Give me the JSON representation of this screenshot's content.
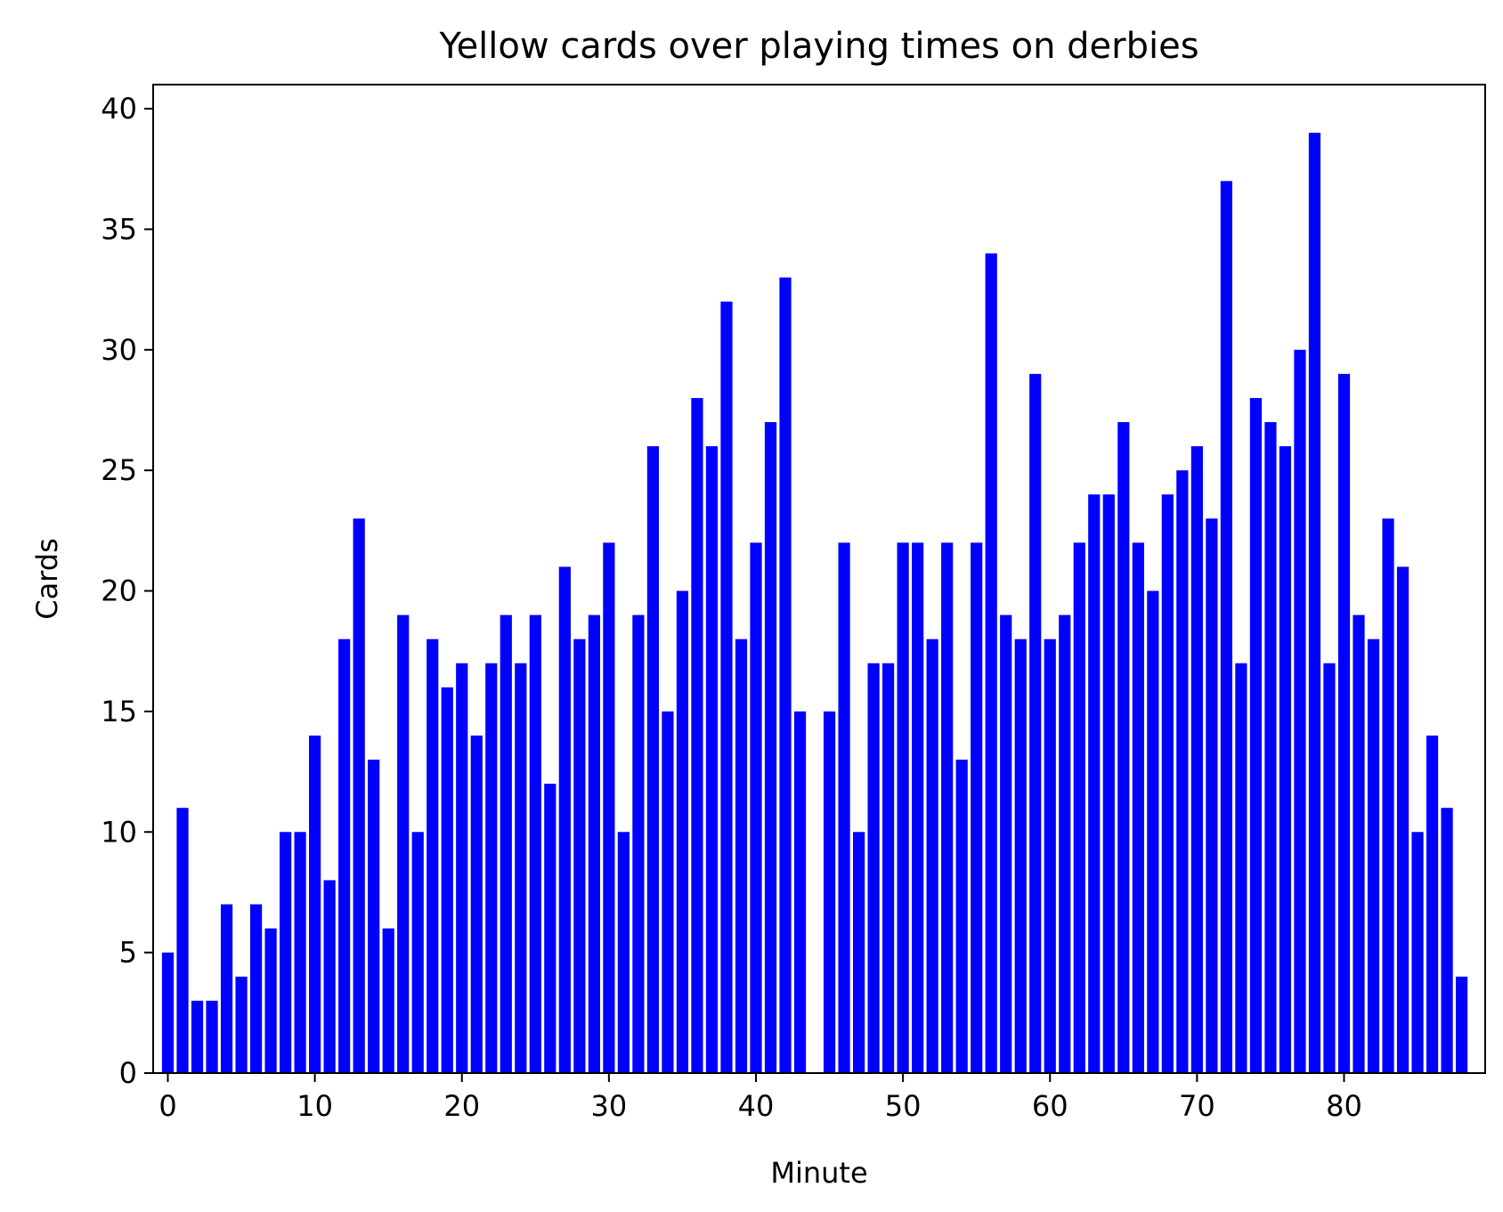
{
  "chart_data": {
    "type": "bar",
    "title": "Yellow cards over playing times on derbies",
    "xlabel": "Minute",
    "ylabel": "Cards",
    "xlim": [
      -1.0,
      89.6
    ],
    "ylim": [
      0,
      41
    ],
    "xticks": [
      0,
      10,
      20,
      30,
      40,
      50,
      60,
      70,
      80
    ],
    "yticks": [
      0,
      5,
      10,
      15,
      20,
      25,
      30,
      35,
      40
    ],
    "bar_color": "#0000ff",
    "bar_width": 0.8,
    "x": [
      0,
      1,
      2,
      3,
      4,
      5,
      6,
      7,
      8,
      9,
      10,
      11,
      12,
      13,
      14,
      15,
      16,
      17,
      18,
      19,
      20,
      21,
      22,
      23,
      24,
      25,
      26,
      27,
      28,
      29,
      30,
      31,
      32,
      33,
      34,
      35,
      36,
      37,
      38,
      39,
      40,
      41,
      42,
      43,
      44,
      45,
      46,
      47,
      48,
      49,
      50,
      51,
      52,
      53,
      54,
      55,
      56,
      57,
      58,
      59,
      60,
      61,
      62,
      63,
      64,
      65,
      66,
      67,
      68,
      69,
      70,
      71,
      72,
      73,
      74,
      75,
      76,
      77,
      78,
      79,
      80,
      81,
      82,
      83,
      84,
      85,
      86,
      87,
      88
    ],
    "values": [
      5,
      11,
      3,
      3,
      7,
      4,
      7,
      6,
      10,
      10,
      14,
      8,
      18,
      23,
      13,
      6,
      19,
      10,
      18,
      16,
      17,
      14,
      17,
      19,
      17,
      19,
      12,
      21,
      18,
      19,
      22,
      10,
      19,
      26,
      15,
      20,
      28,
      26,
      32,
      18,
      22,
      27,
      33,
      15,
      0,
      15,
      22,
      10,
      17,
      17,
      22,
      22,
      18,
      22,
      13,
      22,
      34,
      19,
      18,
      29,
      18,
      19,
      22,
      24,
      24,
      27,
      22,
      20,
      24,
      25,
      26,
      23,
      37,
      17,
      28,
      27,
      26,
      30,
      39,
      17,
      29,
      19,
      18,
      23,
      21,
      10,
      14,
      11,
      4
    ]
  }
}
